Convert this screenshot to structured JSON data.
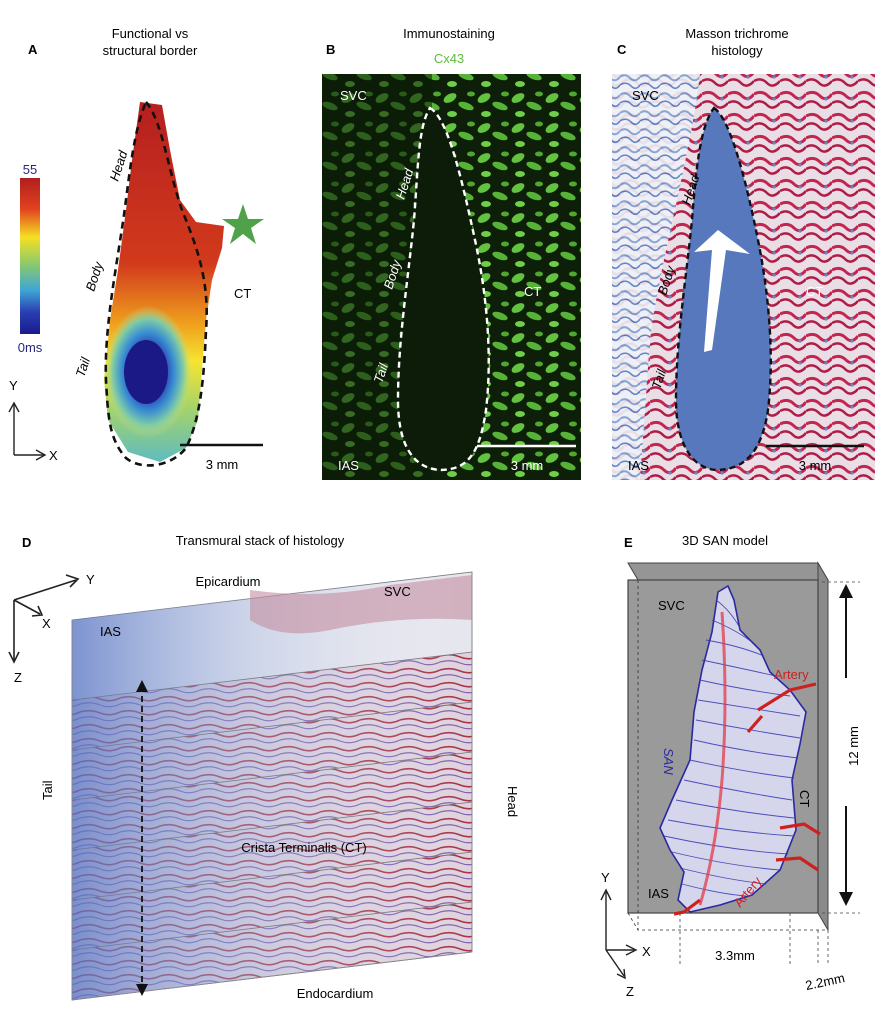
{
  "panelA": {
    "letter": "A",
    "title_line1": "Functional vs",
    "title_line2": "structural border",
    "scale_max": "55",
    "scale_min": "0ms",
    "labels": {
      "head": "Head",
      "body": "Body",
      "tail": "Tail",
      "ct": "CT"
    },
    "axes": {
      "y": "Y",
      "x": "X"
    },
    "scalebar": "3 mm"
  },
  "panelB": {
    "letter": "B",
    "title": "Immunostaining",
    "subtitle": "Cx43",
    "labels": {
      "svc": "SVC",
      "head": "Head",
      "body": "Body",
      "tail": "Tail",
      "ct": "CT",
      "ias": "IAS"
    },
    "scalebar": "3 mm",
    "colors": {
      "stain": "#5dbb3b",
      "bg": "#0b1a07"
    }
  },
  "panelC": {
    "letter": "C",
    "title_line1": "Masson  trichrome",
    "title_line2": "histology",
    "labels": {
      "svc": "SVC",
      "head": "Head",
      "body": "Body",
      "tail": "Tail",
      "ct": "CT",
      "ias": "IAS"
    },
    "scalebar": "3 mm"
  },
  "panelD": {
    "letter": "D",
    "title": "Transmural stack of histology",
    "labels": {
      "epicardium": "Epicardium",
      "endocardium": "Endocardium",
      "svc": "SVC",
      "ias": "IAS",
      "tail": "Tail",
      "head": "Head",
      "ct": "Crista Terminalis (CT)"
    },
    "axes": {
      "y": "Y",
      "x": "X",
      "z": "Z"
    }
  },
  "panelE": {
    "letter": "E",
    "title": "3D SAN model",
    "labels": {
      "svc": "SVC",
      "san": "SAN",
      "artery_top": "Artery",
      "artery_bottom": "Artery",
      "ct": "CT",
      "ias": "IAS"
    },
    "dims": {
      "height": "12 mm",
      "width": "3.3mm",
      "depth": "2.2mm"
    },
    "axes": {
      "y": "Y",
      "x": "X",
      "z": "Z"
    }
  }
}
